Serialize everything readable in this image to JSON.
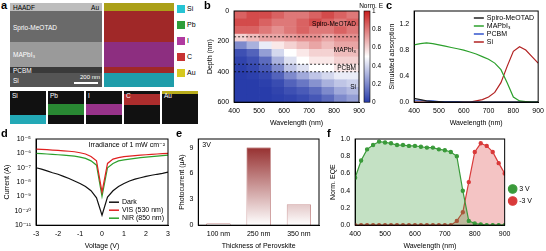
{
  "panel_a": {
    "panel": "a",
    "haadf": {
      "title": "HAADF",
      "layers": [
        "Au",
        "Sprio-MeOTAD",
        "MAPbI₃",
        "PCBM",
        "Si"
      ],
      "scale_bar": "200 nm"
    },
    "map_legend": [
      {
        "name": "Si",
        "color": "#27c4d4"
      },
      {
        "name": "Pb",
        "color": "#2e9e3a"
      },
      {
        "name": "I",
        "color": "#b03aa0"
      },
      {
        "name": "C",
        "color": "#c83232"
      },
      {
        "name": "Au",
        "color": "#d6c81e"
      }
    ],
    "element_maps": [
      {
        "name": "Si",
        "color": "#27c4d4"
      },
      {
        "name": "Pb",
        "color": "#2e9e3a"
      },
      {
        "name": "I",
        "color": "#b03aa0"
      },
      {
        "name": "C",
        "color": "#c83232"
      },
      {
        "name": "Au",
        "color": "#d6c81e"
      }
    ]
  },
  "chart_data": [
    {
      "panel": "b",
      "type": "heatmap",
      "x_label": "Wavelength (nm)",
      "y_label": "Depth (nm)",
      "x": [
        425,
        475,
        525,
        575,
        625,
        675,
        725,
        775,
        825,
        875
      ],
      "y": [
        25,
        75,
        125,
        175,
        225,
        275,
        325,
        375,
        425,
        475,
        525,
        575
      ],
      "cells": [
        [
          0.85,
          0.9,
          0.9,
          0.85,
          0.8,
          0.8,
          0.85,
          0.9,
          0.85,
          0.8
        ],
        [
          0.9,
          0.9,
          0.85,
          0.8,
          0.8,
          0.85,
          0.9,
          0.85,
          0.8,
          0.85
        ],
        [
          0.85,
          0.85,
          0.8,
          0.75,
          0.8,
          0.85,
          0.8,
          0.8,
          0.85,
          0.8
        ],
        [
          0.6,
          0.65,
          0.7,
          0.7,
          0.72,
          0.75,
          0.75,
          0.7,
          0.75,
          0.75
        ],
        [
          0.2,
          0.3,
          0.45,
          0.55,
          0.6,
          0.65,
          0.7,
          0.65,
          0.7,
          0.7
        ],
        [
          0.05,
          0.1,
          0.25,
          0.4,
          0.5,
          0.55,
          0.6,
          0.6,
          0.65,
          0.65
        ],
        [
          0.02,
          0.05,
          0.12,
          0.3,
          0.42,
          0.5,
          0.55,
          0.55,
          0.6,
          0.6
        ],
        [
          0.01,
          0.03,
          0.08,
          0.2,
          0.35,
          0.42,
          0.5,
          0.5,
          0.55,
          0.55
        ],
        [
          0,
          0.01,
          0.03,
          0.1,
          0.2,
          0.28,
          0.35,
          0.4,
          0.45,
          0.45
        ],
        [
          0,
          0,
          0.01,
          0.04,
          0.1,
          0.15,
          0.22,
          0.3,
          0.35,
          0.38
        ],
        [
          0,
          0,
          0,
          0.02,
          0.05,
          0.08,
          0.12,
          0.2,
          0.28,
          0.32
        ],
        [
          0,
          0,
          0,
          0.01,
          0.02,
          0.04,
          0.07,
          0.12,
          0.2,
          0.25
        ]
      ],
      "xlim": [
        400,
        900
      ],
      "xticks": [
        400,
        500,
        600,
        700,
        800,
        900
      ],
      "ylim": [
        0,
        600
      ],
      "yticks": [
        0,
        200,
        400,
        600
      ],
      "colorbar_label": "Norm. E",
      "colorbar_lim": [
        0,
        1
      ],
      "colorbar_ticks": [
        0,
        0.2,
        0.4,
        0.6,
        0.8,
        1
      ],
      "layers": [
        {
          "name": "Spiro-MeOTAD",
          "top": 0,
          "bottom": 170
        },
        {
          "name": "MAPbI₃",
          "top": 170,
          "bottom": 350
        },
        {
          "name": "PCBM",
          "top": 350,
          "bottom": 400
        },
        {
          "name": "Si",
          "top": 400,
          "bottom": 600
        }
      ]
    },
    {
      "panel": "c",
      "type": "line",
      "x_label": "Wavelength (nm)",
      "y_label": "Simulated absorption",
      "x": [
        400,
        425,
        450,
        475,
        500,
        525,
        550,
        575,
        600,
        625,
        650,
        675,
        700,
        725,
        750,
        775,
        800,
        825,
        850,
        875,
        900
      ],
      "series": [
        {
          "name": "Spiro-MeOTAD",
          "color": "#222222",
          "values": [
            0.06,
            0.04,
            0.02,
            0.01,
            0.01,
            0,
            0,
            0,
            0,
            0,
            0,
            0,
            0,
            0,
            0,
            0,
            0,
            0,
            0,
            0,
            0
          ]
        },
        {
          "name": "MAPbI₃",
          "color": "#2ca02c",
          "values": [
            0.88,
            0.9,
            0.91,
            0.9,
            0.88,
            0.86,
            0.84,
            0.82,
            0.8,
            0.77,
            0.74,
            0.7,
            0.66,
            0.6,
            0.5,
            0.3,
            0.08,
            0.02,
            0.01,
            0,
            0
          ]
        },
        {
          "name": "PCBM",
          "color": "#3355cc",
          "values": [
            0.03,
            0.03,
            0.02,
            0.02,
            0.01,
            0.01,
            0.01,
            0.01,
            0,
            0,
            0,
            0,
            0,
            0,
            0,
            0,
            0,
            0,
            0,
            0,
            0
          ]
        },
        {
          "name": "Si",
          "color": "#b22222",
          "values": [
            0,
            0,
            0,
            0,
            0,
            0,
            0,
            0,
            0,
            0,
            0.02,
            0.04,
            0.08,
            0.15,
            0.3,
            0.55,
            0.78,
            0.85,
            0.8,
            0.7,
            0.6
          ]
        }
      ],
      "xlim": [
        400,
        900
      ],
      "xticks": [
        400,
        500,
        600,
        700,
        800,
        900
      ],
      "ylim": [
        0,
        1.4
      ],
      "yticks": [
        {
          "value": 0,
          "label": "0.0"
        },
        {
          "value": 0.4,
          "label": "0.4"
        },
        {
          "value": 0.8,
          "label": "0.8"
        },
        {
          "value": 1.2,
          "label": "1.2"
        }
      ],
      "legend": "top right"
    },
    {
      "panel": "d",
      "type": "line",
      "x_label": "Voltage (V)",
      "y_label": "Current (A)",
      "annotation": "Irradiance of 1 mW cm⁻²",
      "log": "y",
      "x": [
        -3,
        -2.75,
        -2.5,
        -2.25,
        -2,
        -1.75,
        -1.5,
        -1.25,
        -1,
        -0.75,
        -0.5,
        -0.25,
        0,
        0.25,
        0.5,
        0.75,
        1,
        1.25,
        1.5,
        1.75,
        2,
        2.25,
        2.5,
        2.75,
        3
      ],
      "series": [
        {
          "name": "Dark",
          "color": "#111111",
          "values": [
            1e-07,
            8e-08,
            6e-08,
            4.5e-08,
            3.5e-08,
            2.5e-08,
            1.8e-08,
            1.2e-08,
            8e-09,
            5e-09,
            2.5e-09,
            8e-10,
            5e-11,
            9e-10,
            2.5e-09,
            5e-09,
            8e-09,
            1.2e-08,
            1.6e-08,
            2e-08,
            2.5e-08,
            3e-08,
            3.5e-08,
            4e-08,
            5e-08
          ]
        },
        {
          "name": "VIS (530 nm)",
          "color": "#e02020",
          "values": [
            2e-06,
            1.9e-06,
            1.8e-06,
            1.7e-06,
            1.6e-06,
            1.5e-06,
            1.4e-06,
            1.3e-06,
            1.1e-06,
            9e-07,
            6e-07,
            3e-07,
            2e-09,
            2e-07,
            4e-07,
            5e-07,
            6e-07,
            6.5e-07,
            7e-07,
            7.5e-07,
            8e-07,
            8.5e-07,
            9e-07,
            9.5e-07,
            1e-06
          ]
        },
        {
          "name": "NIR (850 nm)",
          "color": "#2ca02c",
          "values": [
            1e-06,
            9.5e-07,
            9e-07,
            8.5e-07,
            8e-07,
            7.5e-07,
            7e-07,
            6.5e-07,
            5.5e-07,
            4.5e-07,
            3e-07,
            1.5e-07,
            1e-09,
            1e-07,
            2e-07,
            3e-07,
            3.5e-07,
            4e-07,
            4.5e-07,
            5e-07,
            5.5e-07,
            6e-07,
            6.5e-07,
            7e-07,
            7.5e-07
          ]
        }
      ],
      "xlim": [
        -3,
        3
      ],
      "xticks": [
        -3,
        -2,
        -1,
        0,
        1,
        2,
        3
      ],
      "ylim": [
        1e-11,
        1e-05
      ],
      "yticks": [
        {
          "value": 1e-11,
          "label": "10⁻¹¹"
        },
        {
          "value": 1e-10,
          "label": "10⁻¹⁰"
        },
        {
          "value": 1e-09,
          "label": "10⁻⁹"
        },
        {
          "value": 1e-08,
          "label": "10⁻⁸"
        },
        {
          "value": 1e-07,
          "label": "10⁻⁷"
        },
        {
          "value": 1e-06,
          "label": "10⁻⁶"
        },
        {
          "value": 1e-05,
          "label": "10⁻⁵"
        }
      ],
      "legend": "bottom right"
    },
    {
      "panel": "e",
      "type": "bar",
      "x_label": "Thickness of Perovskite",
      "y_label": "Photocurrent (μA)",
      "annotation": "3V",
      "categories": [
        "100 nm",
        "250 nm",
        "350 nm"
      ],
      "values": [
        0.2,
        9.0,
        2.4
      ],
      "color": "#8b1a1a",
      "ylim": [
        0,
        10
      ],
      "yticks": [
        0,
        3,
        6,
        9
      ]
    },
    {
      "panel": "f",
      "type": "line",
      "x_label": "Wavelength (nm)",
      "y_label": "Norm. EQE",
      "x": [
        400,
        420,
        440,
        460,
        480,
        500,
        520,
        540,
        560,
        580,
        600,
        620,
        640,
        660,
        680,
        700,
        720,
        740,
        760,
        780,
        800,
        820,
        840,
        860,
        880,
        900
      ],
      "series": [
        {
          "name": "3 V",
          "color": "#3a9a3a",
          "type": "area",
          "marker": "circle",
          "values": [
            0.55,
            0.75,
            0.88,
            0.93,
            0.97,
            0.96,
            0.95,
            0.93,
            0.93,
            0.92,
            0.92,
            0.91,
            0.9,
            0.9,
            0.88,
            0.87,
            0.85,
            0.8,
            0.4,
            0.05,
            0.02,
            0.01,
            0,
            0,
            0,
            0
          ]
        },
        {
          "name": "-3 V",
          "color": "#d93a3a",
          "type": "area",
          "marker": "circle",
          "values": [
            0,
            0,
            0,
            0,
            0,
            0,
            0,
            0,
            0,
            0,
            0,
            0,
            0,
            0,
            0,
            0,
            0,
            0.05,
            0.15,
            0.5,
            0.85,
            0.95,
            0.92,
            0.85,
            0.72,
            0.6
          ]
        }
      ],
      "xlim": [
        400,
        900
      ],
      "xticks": [
        400,
        500,
        600,
        700,
        800,
        900
      ],
      "ylim": [
        0,
        1
      ],
      "yticks": [
        {
          "value": 0,
          "label": "0.0"
        },
        {
          "value": 0.2,
          "label": "0.2"
        },
        {
          "value": 0.4,
          "label": "0.4"
        },
        {
          "value": 0.6,
          "label": "0.6"
        },
        {
          "value": 0.8,
          "label": "0.8"
        },
        {
          "value": 1,
          "label": "1.0"
        }
      ],
      "legend": "right"
    }
  ]
}
